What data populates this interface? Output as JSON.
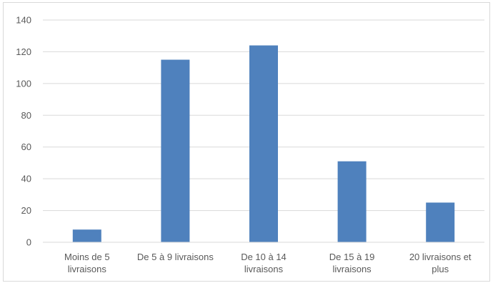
{
  "chart_data": {
    "type": "bar",
    "categories": [
      [
        "Moins de 5",
        "livraisons"
      ],
      [
        "De 5 à 9 livraisons"
      ],
      [
        "De 10 à 14",
        "livraisons"
      ],
      [
        "De 15 à 19",
        "livraisons"
      ],
      [
        "20 livraisons et",
        "plus"
      ]
    ],
    "values": [
      8,
      115,
      124,
      51,
      25
    ],
    "ylim": [
      0,
      140
    ],
    "yticks": [
      0,
      20,
      40,
      60,
      80,
      100,
      120,
      140
    ],
    "title": "",
    "xlabel": "",
    "ylabel": "",
    "grid": true,
    "legend": "none",
    "bar_color": "#4f81bd",
    "grid_color": "#d9d9d9"
  }
}
